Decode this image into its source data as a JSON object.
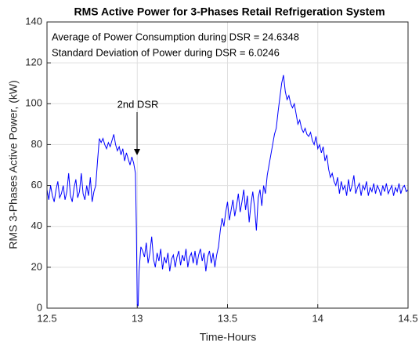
{
  "chart_data": {
    "type": "line",
    "title": "RMS Active Power for 3-Phases Retail Refrigeration System",
    "xlabel": "Time-Hours",
    "ylabel": "RMS 3-Phases Active Power, (kW)",
    "text_box": [
      "Average of Power Consumption during DSR = 24.6348",
      "Standard Deviation of Power during DSR = 6.0246"
    ],
    "annotation": "2nd DSR",
    "color": "#0000ff",
    "grid": true,
    "xlim": [
      12.5,
      14.5
    ],
    "xticks": [
      12.5,
      13,
      13.5,
      14,
      14.5
    ],
    "ylim": [
      0,
      140
    ],
    "yticks": [
      0,
      20,
      40,
      60,
      80,
      100,
      120,
      140
    ],
    "x": [
      12.5,
      12.51,
      12.52,
      12.53,
      12.54,
      12.55,
      12.56,
      12.57,
      12.58,
      12.59,
      12.6,
      12.61,
      12.62,
      12.63,
      12.64,
      12.65,
      12.66,
      12.67,
      12.68,
      12.69,
      12.7,
      12.71,
      12.72,
      12.73,
      12.74,
      12.75,
      12.76,
      12.77,
      12.78,
      12.79,
      12.8,
      12.81,
      12.82,
      12.83,
      12.84,
      12.85,
      12.86,
      12.87,
      12.88,
      12.89,
      12.9,
      12.91,
      12.92,
      12.93,
      12.94,
      12.95,
      12.96,
      12.97,
      12.98,
      12.99,
      12.995,
      13.0,
      13.005,
      13.01,
      13.02,
      13.03,
      13.04,
      13.05,
      13.06,
      13.07,
      13.08,
      13.09,
      13.1,
      13.11,
      13.12,
      13.13,
      13.14,
      13.15,
      13.16,
      13.17,
      13.18,
      13.19,
      13.2,
      13.21,
      13.22,
      13.23,
      13.24,
      13.25,
      13.26,
      13.27,
      13.28,
      13.29,
      13.3,
      13.31,
      13.32,
      13.33,
      13.34,
      13.35,
      13.36,
      13.37,
      13.38,
      13.39,
      13.4,
      13.41,
      13.42,
      13.43,
      13.44,
      13.45,
      13.46,
      13.47,
      13.48,
      13.49,
      13.5,
      13.51,
      13.52,
      13.53,
      13.54,
      13.55,
      13.56,
      13.57,
      13.58,
      13.59,
      13.6,
      13.61,
      13.62,
      13.63,
      13.64,
      13.65,
      13.66,
      13.67,
      13.68,
      13.69,
      13.7,
      13.71,
      13.72,
      13.73,
      13.74,
      13.75,
      13.76,
      13.77,
      13.78,
      13.79,
      13.8,
      13.81,
      13.82,
      13.83,
      13.84,
      13.85,
      13.86,
      13.87,
      13.88,
      13.89,
      13.9,
      13.91,
      13.92,
      13.93,
      13.94,
      13.95,
      13.96,
      13.97,
      13.98,
      13.99,
      14.0,
      14.01,
      14.02,
      14.03,
      14.04,
      14.05,
      14.06,
      14.07,
      14.08,
      14.09,
      14.1,
      14.11,
      14.12,
      14.13,
      14.14,
      14.15,
      14.16,
      14.17,
      14.18,
      14.19,
      14.2,
      14.21,
      14.22,
      14.23,
      14.24,
      14.25,
      14.26,
      14.27,
      14.28,
      14.29,
      14.3,
      14.31,
      14.32,
      14.33,
      14.34,
      14.35,
      14.36,
      14.37,
      14.38,
      14.39,
      14.4,
      14.41,
      14.42,
      14.43,
      14.44,
      14.45,
      14.46,
      14.47,
      14.48,
      14.49,
      14.5
    ],
    "values": [
      58,
      53,
      60,
      55,
      52,
      58,
      62,
      54,
      56,
      60,
      53,
      57,
      66,
      55,
      52,
      59,
      63,
      54,
      57,
      66,
      56,
      53,
      60,
      55,
      64,
      52,
      57,
      60,
      72,
      83,
      81,
      83,
      80,
      78,
      81,
      79,
      82,
      85,
      80,
      77,
      79,
      75,
      78,
      72,
      76,
      73,
      70,
      74,
      71,
      66,
      40,
      2,
      1,
      18,
      30,
      28,
      25,
      32,
      22,
      27,
      35,
      24,
      20,
      27,
      23,
      29,
      19,
      25,
      22,
      27,
      18,
      24,
      26,
      20,
      25,
      28,
      21,
      26,
      23,
      29,
      20,
      25,
      27,
      22,
      28,
      21,
      26,
      29,
      23,
      27,
      18,
      25,
      28,
      22,
      27,
      20,
      26,
      30,
      38,
      44,
      40,
      47,
      52,
      43,
      48,
      53,
      45,
      50,
      56,
      47,
      52,
      58,
      48,
      55,
      42,
      51,
      57,
      49,
      38,
      54,
      58,
      50,
      60,
      56,
      65,
      70,
      75,
      80,
      85,
      88,
      96,
      103,
      110,
      114,
      106,
      102,
      104,
      100,
      98,
      100,
      95,
      90,
      92,
      88,
      86,
      88,
      85,
      84,
      86,
      82,
      80,
      84,
      78,
      80,
      76,
      79,
      72,
      75,
      68,
      64,
      66,
      62,
      60,
      64,
      56,
      62,
      58,
      60,
      55,
      63,
      57,
      60,
      65,
      56,
      59,
      61,
      55,
      60,
      58,
      62,
      55,
      59,
      57,
      61,
      56,
      60,
      58,
      55,
      60,
      57,
      61,
      56,
      58,
      60,
      55,
      59,
      57,
      61,
      56,
      59,
      60,
      57,
      58
    ]
  }
}
